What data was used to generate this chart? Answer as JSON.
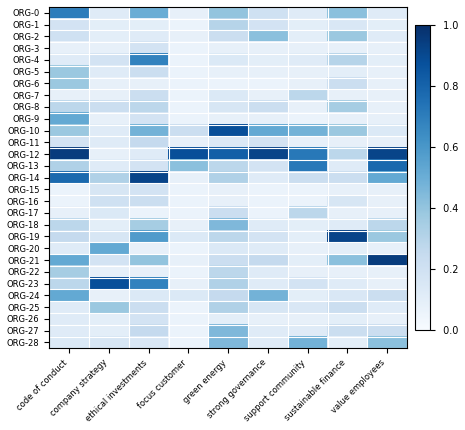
{
  "orgs": [
    "ORG-0",
    "ORG-1",
    "ORG-2",
    "ORG-3",
    "ORG-4",
    "ORG-5",
    "ORG-6",
    "ORG-7",
    "ORG-8",
    "ORG-9",
    "ORG-10",
    "ORG-11",
    "ORG-12",
    "ORG-13",
    "ORG-14",
    "ORG-15",
    "ORG-16",
    "ORG-17",
    "ORG-18",
    "ORG-19",
    "ORG-20",
    "ORG-21",
    "ORG-22",
    "ORG-23",
    "ORG-24",
    "ORG-25",
    "ORG-26",
    "ORG-27",
    "ORG-28"
  ],
  "columns": [
    "code of conduct",
    "company strategy",
    "ethical investments",
    "focus customer",
    "green energy",
    "strong governance",
    "support community",
    "sustainable finance",
    "value employees"
  ],
  "data": [
    [
      0.7,
      0.12,
      0.5,
      0.08,
      0.4,
      0.2,
      0.12,
      0.42,
      0.12
    ],
    [
      0.18,
      0.1,
      0.1,
      0.06,
      0.3,
      0.18,
      0.1,
      0.15,
      0.1
    ],
    [
      0.2,
      0.1,
      0.12,
      0.08,
      0.22,
      0.42,
      0.1,
      0.38,
      0.12
    ],
    [
      0.08,
      0.08,
      0.18,
      0.06,
      0.08,
      0.08,
      0.08,
      0.08,
      0.08
    ],
    [
      0.12,
      0.18,
      0.68,
      0.06,
      0.14,
      0.1,
      0.12,
      0.3,
      0.1
    ],
    [
      0.38,
      0.12,
      0.22,
      0.06,
      0.08,
      0.08,
      0.08,
      0.1,
      0.08
    ],
    [
      0.38,
      0.08,
      0.08,
      0.06,
      0.06,
      0.06,
      0.08,
      0.22,
      0.08
    ],
    [
      0.08,
      0.08,
      0.22,
      0.06,
      0.14,
      0.08,
      0.28,
      0.08,
      0.08
    ],
    [
      0.28,
      0.22,
      0.28,
      0.06,
      0.16,
      0.22,
      0.08,
      0.35,
      0.08
    ],
    [
      0.52,
      0.08,
      0.18,
      0.06,
      0.08,
      0.08,
      0.06,
      0.08,
      0.08
    ],
    [
      0.38,
      0.12,
      0.48,
      0.22,
      0.88,
      0.52,
      0.48,
      0.38,
      0.14
    ],
    [
      0.18,
      0.12,
      0.25,
      0.08,
      0.14,
      0.18,
      0.08,
      0.08,
      0.08
    ],
    [
      0.95,
      0.08,
      0.12,
      0.88,
      0.82,
      0.92,
      0.72,
      0.28,
      0.92
    ],
    [
      0.32,
      0.12,
      0.18,
      0.42,
      0.28,
      0.18,
      0.72,
      0.12,
      0.78
    ],
    [
      0.78,
      0.32,
      0.92,
      0.08,
      0.32,
      0.12,
      0.22,
      0.22,
      0.52
    ],
    [
      0.06,
      0.16,
      0.18,
      0.06,
      0.08,
      0.06,
      0.06,
      0.08,
      0.08
    ],
    [
      0.06,
      0.2,
      0.22,
      0.06,
      0.08,
      0.06,
      0.06,
      0.16,
      0.08
    ],
    [
      0.08,
      0.14,
      0.06,
      0.06,
      0.22,
      0.06,
      0.28,
      0.08,
      0.08
    ],
    [
      0.28,
      0.1,
      0.35,
      0.08,
      0.45,
      0.12,
      0.1,
      0.12,
      0.28
    ],
    [
      0.25,
      0.16,
      0.58,
      0.14,
      0.28,
      0.18,
      0.1,
      0.92,
      0.38
    ],
    [
      0.12,
      0.52,
      0.08,
      0.06,
      0.14,
      0.12,
      0.08,
      0.1,
      0.08
    ],
    [
      0.52,
      0.18,
      0.4,
      0.08,
      0.22,
      0.25,
      0.1,
      0.42,
      0.95
    ],
    [
      0.35,
      0.08,
      0.08,
      0.06,
      0.28,
      0.12,
      0.08,
      0.08,
      0.08
    ],
    [
      0.28,
      0.88,
      0.68,
      0.08,
      0.32,
      0.12,
      0.18,
      0.12,
      0.08
    ],
    [
      0.52,
      0.08,
      0.14,
      0.14,
      0.25,
      0.48,
      0.1,
      0.15,
      0.22
    ],
    [
      0.12,
      0.38,
      0.22,
      0.06,
      0.32,
      0.16,
      0.15,
      0.22,
      0.12
    ],
    [
      0.12,
      0.1,
      0.18,
      0.06,
      0.1,
      0.08,
      0.08,
      0.1,
      0.08
    ],
    [
      0.12,
      0.1,
      0.25,
      0.06,
      0.45,
      0.12,
      0.12,
      0.22,
      0.22
    ],
    [
      0.14,
      0.16,
      0.15,
      0.06,
      0.45,
      0.12,
      0.48,
      0.1,
      0.42
    ]
  ],
  "cmap": "Blues",
  "vmin": 0.0,
  "vmax": 1.0,
  "figsize": [
    4.65,
    4.3
  ],
  "dpi": 100
}
